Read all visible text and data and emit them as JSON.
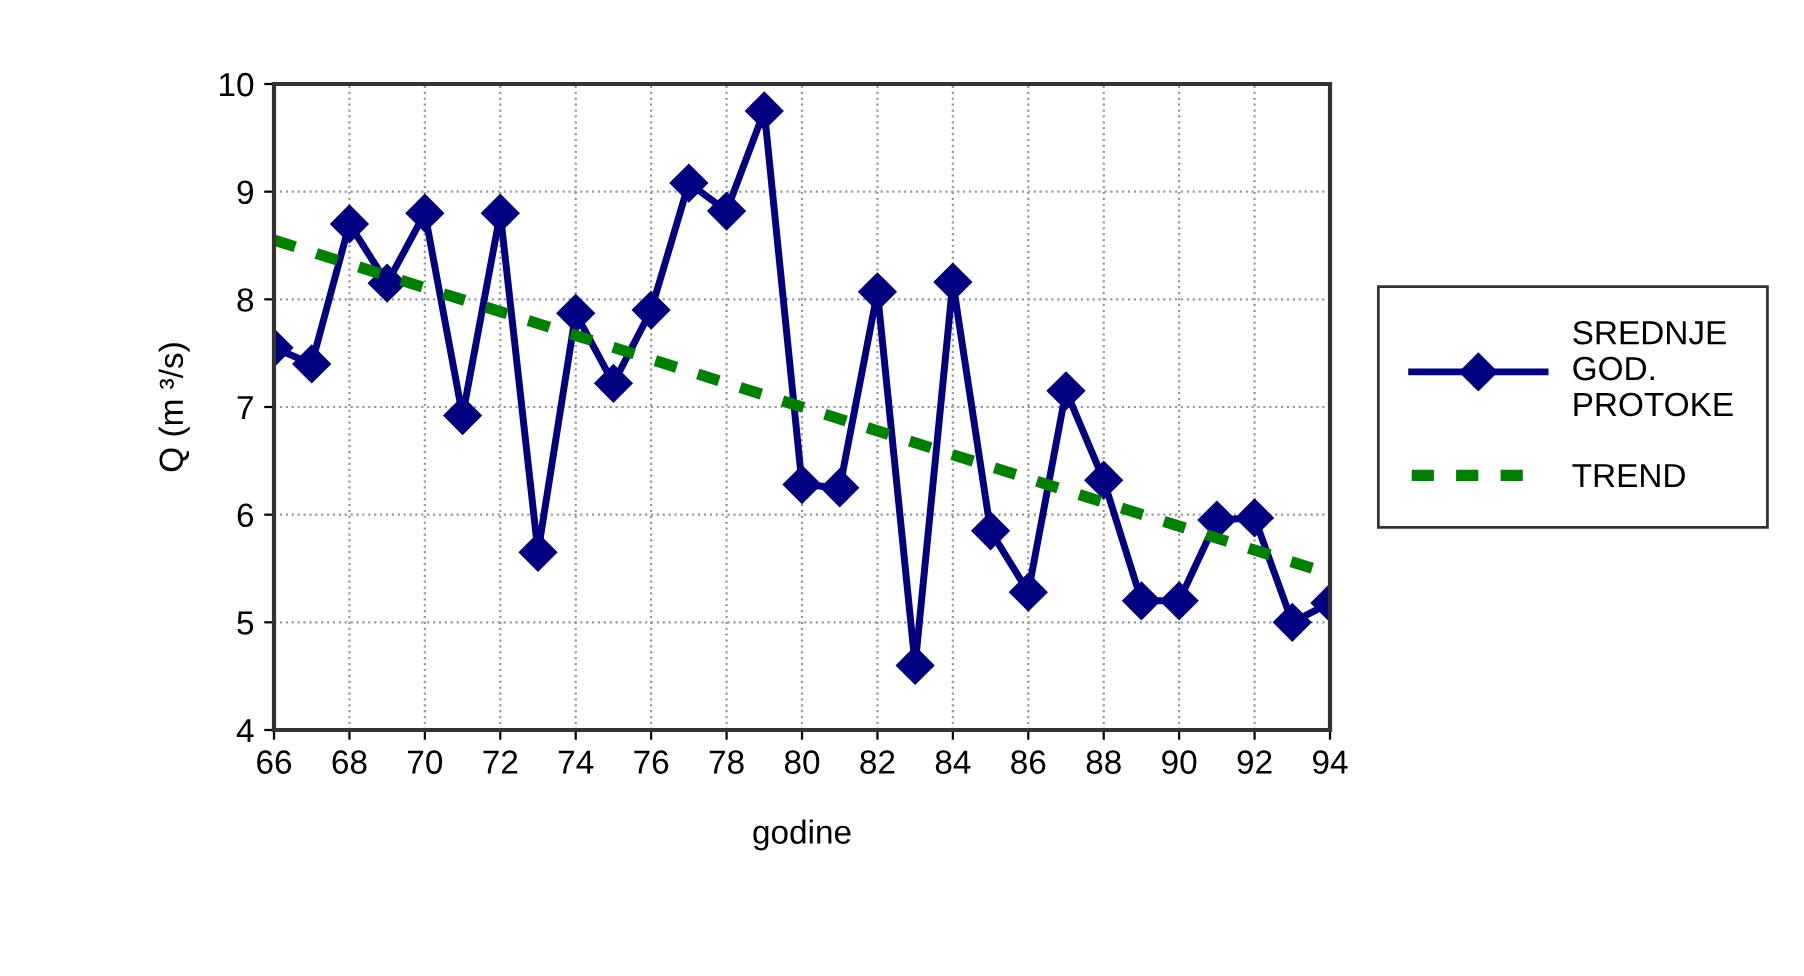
{
  "chart_data": {
    "type": "line",
    "xlabel": "godine",
    "ylabel": "Q (m ³/s)",
    "xlim": [
      66,
      94
    ],
    "xticks": [
      66,
      68,
      70,
      72,
      74,
      76,
      78,
      80,
      82,
      84,
      86,
      88,
      90,
      92,
      94
    ],
    "ylim": [
      4,
      10
    ],
    "yticks": [
      4,
      5,
      6,
      7,
      8,
      9,
      10
    ],
    "grid": true,
    "legend": "right",
    "series": [
      {
        "name": "SREDNJE GOD. PROTOKE",
        "color": "#000080",
        "marker": "diamond",
        "line_style": "solid",
        "x": [
          66,
          67,
          68,
          69,
          70,
          71,
          72,
          73,
          74,
          75,
          76,
          77,
          78,
          79,
          80,
          81,
          82,
          83,
          84,
          85,
          86,
          87,
          88,
          89,
          90,
          91,
          92,
          93,
          94
        ],
        "values": [
          7.55,
          7.4,
          8.7,
          8.15,
          8.8,
          6.92,
          8.8,
          5.65,
          7.87,
          7.22,
          7.9,
          9.08,
          8.82,
          9.75,
          6.28,
          6.25,
          8.07,
          4.6,
          8.16,
          5.85,
          5.28,
          7.15,
          6.32,
          5.2,
          5.2,
          5.95,
          5.97,
          5.0,
          5.18
        ]
      },
      {
        "name": "TREND",
        "color": "#008000",
        "marker": "none",
        "line_style": "dashed",
        "x": [
          66,
          94
        ],
        "values": [
          8.55,
          5.45
        ]
      }
    ]
  }
}
